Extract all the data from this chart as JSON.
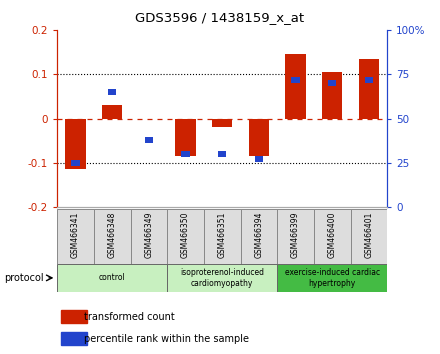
{
  "title": "GDS3596 / 1438159_x_at",
  "samples": [
    "GSM466341",
    "GSM466348",
    "GSM466349",
    "GSM466350",
    "GSM466351",
    "GSM466394",
    "GSM466399",
    "GSM466400",
    "GSM466401"
  ],
  "red_values": [
    -0.115,
    0.03,
    0.0,
    -0.085,
    -0.02,
    -0.085,
    0.145,
    0.105,
    0.135
  ],
  "blue_values_pct": [
    25,
    65,
    38,
    30,
    30,
    27,
    72,
    70,
    72
  ],
  "ylim_left": [
    -0.2,
    0.2
  ],
  "ylim_right": [
    0,
    100
  ],
  "red_color": "#cc2200",
  "blue_color": "#2244cc",
  "bar_width": 0.55,
  "legend_red": "transformed count",
  "legend_blue": "percentile rank within the sample",
  "protocol_label": "protocol",
  "group_defs": [
    {
      "start": 0,
      "end": 3,
      "color": "#c8f0c0",
      "label": "control"
    },
    {
      "start": 3,
      "end": 6,
      "color": "#c8f0c0",
      "label": "isoproterenol-induced\ncardiomyopathy"
    },
    {
      "start": 6,
      "end": 9,
      "color": "#44bb44",
      "label": "exercise-induced cardiac\nhypertrophy"
    }
  ]
}
